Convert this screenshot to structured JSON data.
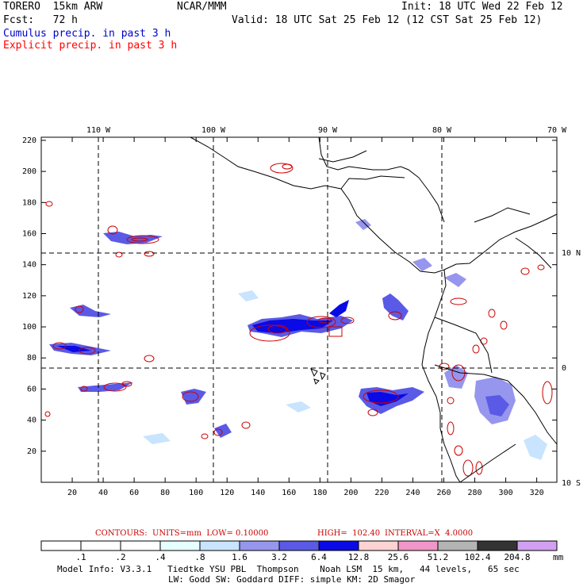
{
  "header": {
    "model": "TORERO  15km ARW",
    "org": "NCAR/MMM",
    "init": "Init: 18 UTC Wed 22 Feb 12",
    "fcst": "Fcst:   72 h",
    "valid": "Valid: 18 UTC Sat 25 Feb 12 (12 CST Sat 25 Feb 12)",
    "field1": "Cumulus precip. in past 3 h",
    "field2": "Explicit precip. in past 3 h",
    "field1_color": "#0000cc",
    "field2_color": "#ff0000"
  },
  "map": {
    "top_lon_labels": [
      "110 W",
      "100 W",
      "90 W",
      "80 W",
      "70 W"
    ],
    "right_lat_labels": [
      "10 N",
      "0",
      "10 S"
    ],
    "y_ticks": [
      "20",
      "40",
      "60",
      "80",
      "100",
      "120",
      "140",
      "160",
      "180",
      "200",
      "220"
    ],
    "x_ticks": [
      "20",
      "40",
      "60",
      "80",
      "100",
      "120",
      "140",
      "160",
      "180",
      "200",
      "220",
      "240",
      "260",
      "280",
      "300",
      "320"
    ]
  },
  "contours": {
    "title": "CONTOURS:  UNITS=mm  LOW= 0.10000",
    "high": "HIGH=  102.40",
    "interval": "INTERVAL=X  4.0000",
    "color": "#cc0000"
  },
  "colorbar": {
    "labels": [
      ".1",
      ".2",
      ".4",
      ".8",
      "1.6",
      "3.2",
      "6.4",
      "12.8",
      "25.6",
      "51.2",
      "102.4",
      "204.8"
    ],
    "unit": "mm",
    "colors": [
      "#ffffff",
      "#ffffff",
      "#ffffff",
      "#e6ffff",
      "#c8e4ff",
      "#9696ee",
      "#5a5ae6",
      "#0a0ae6",
      "#ffd2d2",
      "#f096c8",
      "#b4b4b4",
      "#333333",
      "#d2a0f0"
    ]
  },
  "footer": {
    "line1": "Model Info: V3.3.1   Tiedtke YSU PBL  Thompson    Noah LSM  15 km,   44 levels,   65 sec",
    "line2": "LW: Godd SW: Goddard DIFF: simple KM: 2D Smagor"
  }
}
